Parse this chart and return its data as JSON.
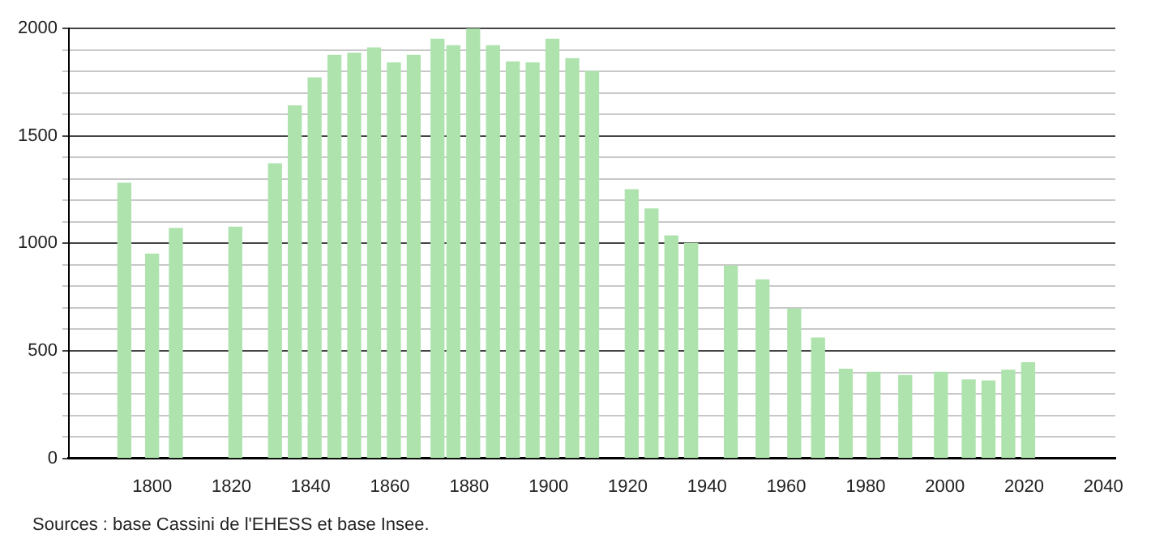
{
  "chart_data": {
    "type": "bar",
    "x": [
      1793,
      1800,
      1806,
      1821,
      1831,
      1836,
      1841,
      1846,
      1851,
      1856,
      1861,
      1866,
      1872,
      1876,
      1881,
      1886,
      1891,
      1896,
      1901,
      1906,
      1911,
      1921,
      1926,
      1931,
      1936,
      1946,
      1954,
      1962,
      1968,
      1975,
      1982,
      1990,
      1999,
      2006,
      2011,
      2016,
      2021
    ],
    "values": [
      1280,
      950,
      1070,
      1075,
      1370,
      1640,
      1770,
      1875,
      1885,
      1910,
      1840,
      1875,
      1950,
      1920,
      2000,
      1920,
      1845,
      1840,
      1950,
      1860,
      1800,
      1250,
      1160,
      1035,
      1000,
      895,
      830,
      695,
      560,
      415,
      400,
      385,
      400,
      365,
      360,
      410,
      445
    ],
    "color": "#aee3ae",
    "xlim": [
      1779,
      2043
    ],
    "xticks": [
      1800,
      1820,
      1840,
      1860,
      1880,
      1900,
      1920,
      1940,
      1960,
      1980,
      2000,
      2020,
      2040
    ],
    "ylim": [
      0,
      2000
    ],
    "yticks": [
      0,
      {
        "value": 100,
        "label": null
      },
      {
        "value": 200,
        "label": null
      },
      {
        "value": 300,
        "label": null
      },
      {
        "value": 400,
        "label": null
      },
      500,
      {
        "value": 600,
        "label": null
      },
      {
        "value": 700,
        "label": null
      },
      {
        "value": 800,
        "label": null
      },
      {
        "value": 900,
        "label": null
      },
      1000,
      {
        "value": 1100,
        "label": null
      },
      {
        "value": 1200,
        "label": null
      },
      {
        "value": 1300,
        "label": null
      },
      {
        "value": 1400,
        "label": null
      },
      1500,
      {
        "value": 1600,
        "label": null
      },
      {
        "value": 1700,
        "label": null
      },
      {
        "value": 1800,
        "label": null
      },
      {
        "value": 1900,
        "label": null
      },
      2000
    ],
    "grid": "y",
    "annotations": [
      "Sources : base Cassini de l'EHESS et base Insee."
    ]
  }
}
